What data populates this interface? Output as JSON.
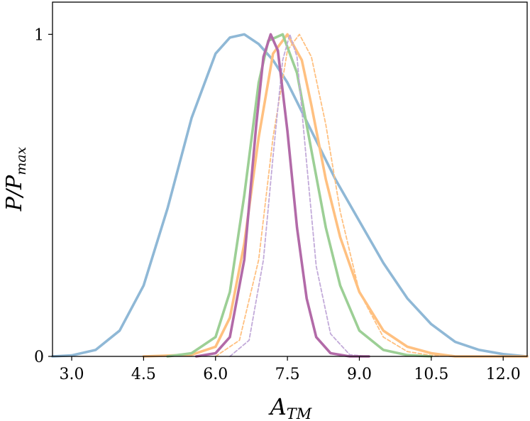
{
  "chart_data": {
    "type": "line",
    "xlabel": "A_TM",
    "ylabel": "P/P_max",
    "xlim": [
      2.6,
      12.5
    ],
    "ylim": [
      0,
      1.1
    ],
    "x_ticks": [
      3.0,
      4.5,
      6.0,
      7.5,
      9.0,
      10.5,
      12.0
    ],
    "x_tick_labels": [
      "3.0",
      "4.5",
      "6.0",
      "7.5",
      "9.0",
      "10.5",
      "12.0"
    ],
    "y_ticks": [
      0,
      1
    ],
    "y_tick_labels": [
      "0",
      "1"
    ],
    "grid": false,
    "legend": "none",
    "series": [
      {
        "color": "#8fb8d6",
        "style": "solid",
        "x": [
          2.6,
          3.0,
          3.5,
          4.0,
          4.5,
          5.0,
          5.5,
          6.0,
          6.3,
          6.6,
          6.9,
          7.2,
          7.5,
          7.8,
          8.1,
          8.5,
          9.0,
          9.5,
          10.0,
          10.5,
          11.0,
          11.5,
          12.0,
          12.5
        ],
        "y": [
          0.0,
          0.003,
          0.02,
          0.08,
          0.22,
          0.46,
          0.74,
          0.94,
          0.99,
          1.0,
          0.97,
          0.92,
          0.85,
          0.76,
          0.67,
          0.55,
          0.42,
          0.29,
          0.18,
          0.1,
          0.045,
          0.02,
          0.007,
          0.0
        ]
      },
      {
        "color": "#ffc080",
        "style": "solid",
        "x": [
          4.5,
          5.5,
          6.0,
          6.3,
          6.6,
          6.9,
          7.2,
          7.5,
          7.8,
          8.0,
          8.3,
          8.6,
          9.0,
          9.5,
          10.0,
          10.5,
          11.0,
          12.5
        ],
        "y": [
          0.0,
          0.005,
          0.03,
          0.12,
          0.35,
          0.68,
          0.94,
          1.0,
          0.92,
          0.78,
          0.55,
          0.37,
          0.2,
          0.08,
          0.03,
          0.01,
          0.0,
          0.0
        ]
      },
      {
        "color": "#ffc080",
        "style": "dashed",
        "x": [
          6.0,
          6.5,
          6.9,
          7.2,
          7.5,
          7.75,
          8.0,
          8.3,
          8.6,
          9.0,
          9.5,
          10.0,
          10.5,
          11.0
        ],
        "y": [
          0.0,
          0.05,
          0.3,
          0.68,
          0.95,
          1.0,
          0.93,
          0.72,
          0.45,
          0.2,
          0.06,
          0.015,
          0.003,
          0.0
        ]
      },
      {
        "color": "#9ccf95",
        "style": "solid",
        "x": [
          5.0,
          5.5,
          6.0,
          6.3,
          6.6,
          6.9,
          7.1,
          7.4,
          7.7,
          8.0,
          8.3,
          8.6,
          9.0,
          9.5,
          10.0,
          10.5
        ],
        "y": [
          0.0,
          0.01,
          0.06,
          0.2,
          0.5,
          0.85,
          0.98,
          1.0,
          0.88,
          0.64,
          0.4,
          0.22,
          0.08,
          0.02,
          0.004,
          0.0
        ]
      },
      {
        "color": "#c2aad9",
        "style": "dashed",
        "x": [
          6.3,
          6.7,
          7.0,
          7.2,
          7.4,
          7.55,
          7.7,
          7.9,
          8.1,
          8.4,
          8.8,
          9.2
        ],
        "y": [
          0.0,
          0.05,
          0.3,
          0.62,
          0.92,
          1.0,
          0.93,
          0.6,
          0.28,
          0.07,
          0.005,
          0.0
        ]
      },
      {
        "color": "#b26aa8",
        "style": "solid",
        "x": [
          5.6,
          6.0,
          6.3,
          6.6,
          6.85,
          7.0,
          7.15,
          7.3,
          7.5,
          7.7,
          7.9,
          8.1,
          8.4,
          8.8,
          9.2
        ],
        "y": [
          0.0,
          0.01,
          0.06,
          0.3,
          0.72,
          0.93,
          1.0,
          0.95,
          0.7,
          0.4,
          0.18,
          0.06,
          0.01,
          0.0,
          0.0
        ]
      }
    ]
  }
}
